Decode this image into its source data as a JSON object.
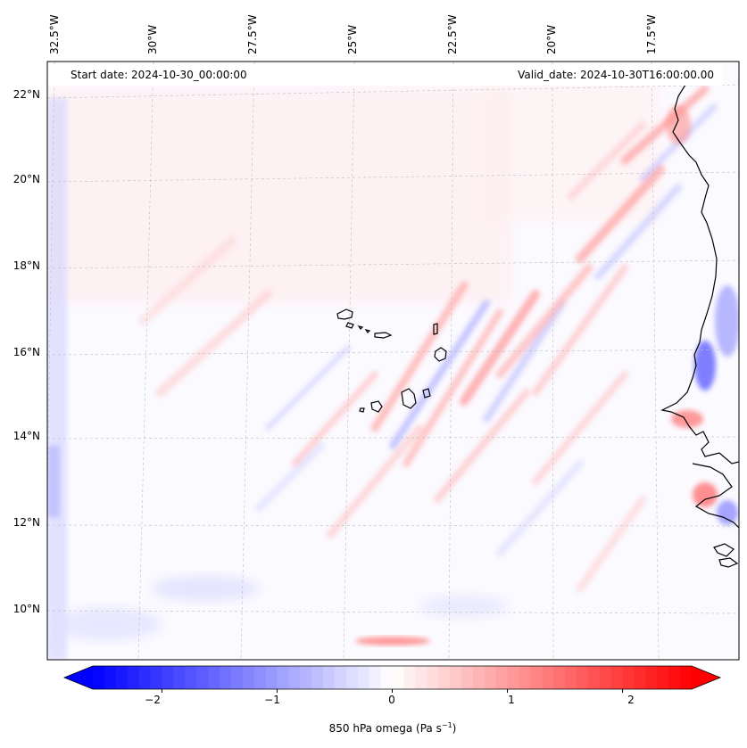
{
  "map": {
    "start_date": "Start date: 2024-10-30_00:00:00",
    "valid_date": "Valid_date: 2024-10-30T16:00:00.00",
    "lon_labels": [
      "32.5°W",
      "30°W",
      "27.5°W",
      "25°W",
      "22.5°W",
      "20°W",
      "17.5°W"
    ],
    "lat_labels": [
      "22°N",
      "20°N",
      "18°N",
      "16°N",
      "14°N",
      "12°N",
      "10°N"
    ],
    "variable": "850 hPa omega",
    "units": "Pa s",
    "units_exponent": "−1",
    "colormap": "bwr",
    "colorbar_ticks": [
      "−2",
      "−1",
      "0",
      "1",
      "2"
    ],
    "colorbar_range": [
      -2.6,
      2.6
    ],
    "low_color": "#0000ff",
    "mid_color": "#ffffff",
    "high_color": "#ff0000"
  }
}
